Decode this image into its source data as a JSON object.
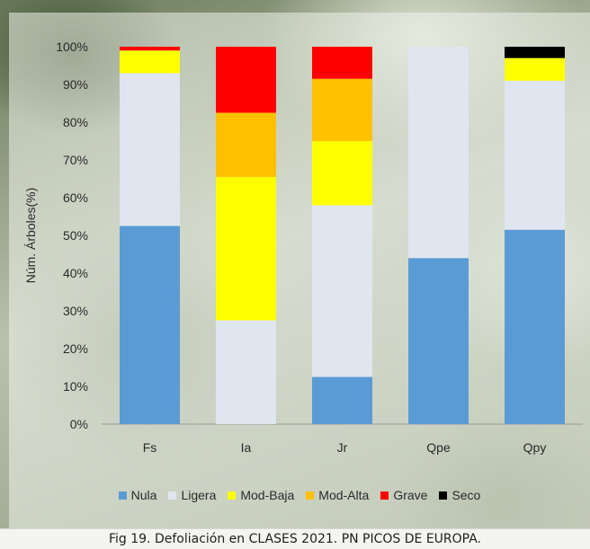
{
  "caption": "Fig 19. Defoliación en CLASES 2021. PN PICOS DE EUROPA.",
  "chart_data": {
    "type": "bar",
    "stacked": true,
    "percent": true,
    "categories": [
      "Fs",
      "Ia",
      "Jr",
      "Qpe",
      "Qpy"
    ],
    "ylabel": "Núm. Árboles(%)",
    "xlabel": "",
    "ylim": [
      0,
      100
    ],
    "yticks": [
      "0%",
      "10%",
      "20%",
      "30%",
      "40%",
      "50%",
      "60%",
      "70%",
      "80%",
      "90%",
      "100%"
    ],
    "grid": false,
    "legend_position": "bottom",
    "series": [
      {
        "name": "Nula",
        "color": "#5b9bd5",
        "values": [
          52.5,
          0,
          12.5,
          44,
          51.5
        ]
      },
      {
        "name": "Ligera",
        "color": "#dfe6f0",
        "values": [
          40.5,
          27.5,
          45.5,
          56,
          39.5
        ]
      },
      {
        "name": "Mod-Baja",
        "color": "#ffff00",
        "values": [
          6,
          38,
          17,
          0,
          6
        ]
      },
      {
        "name": "Mod-Alta",
        "color": "#ffc000",
        "values": [
          0,
          17,
          16.5,
          0,
          0
        ]
      },
      {
        "name": "Grave",
        "color": "#ff0000",
        "values": [
          1,
          17.5,
          8.5,
          0,
          0
        ]
      },
      {
        "name": "Seco",
        "color": "#000000",
        "values": [
          0,
          0,
          0,
          0,
          3
        ]
      }
    ]
  }
}
